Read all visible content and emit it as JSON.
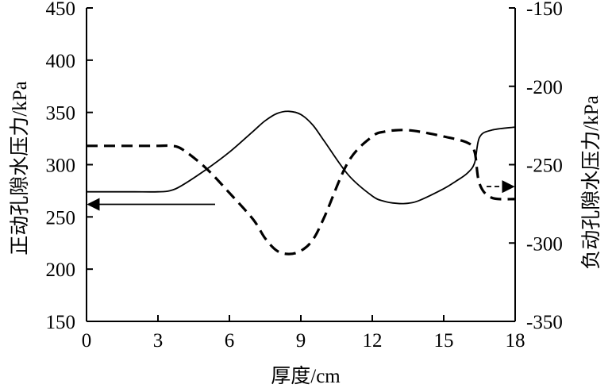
{
  "chart_data": {
    "type": "line",
    "xlabel": "厚度/cm",
    "ylabel_left": "正动孔隙水压力/kPa",
    "ylabel_right": "负动孔隙水压力/kPa",
    "xlim": [
      0,
      18
    ],
    "ylim_left": [
      150,
      450
    ],
    "ylim_right": [
      -350,
      -150
    ],
    "x_ticks": [
      "0",
      "3",
      "6",
      "9",
      "12",
      "15",
      "18"
    ],
    "y_left_ticks": [
      "450",
      "400",
      "350",
      "300",
      "250",
      "200",
      "150"
    ],
    "y_right_ticks": [
      "-150",
      "-200",
      "-250",
      "-300",
      "-350"
    ],
    "grid": false,
    "series": [
      {
        "axis": "left",
        "style": "solid",
        "x": [
          0,
          1,
          2,
          3,
          3.5,
          4,
          5,
          6,
          7,
          7.5,
          8,
          8.5,
          9,
          9.5,
          10,
          11,
          12,
          12.5,
          13,
          13.5,
          14,
          15,
          15.5,
          16,
          16.3,
          16.5,
          17,
          18
        ],
        "y": [
          274,
          274,
          274,
          274,
          275,
          280,
          295,
          312,
          332,
          342,
          349,
          351,
          348,
          338,
          322,
          290,
          270,
          265,
          263,
          263,
          266,
          277,
          284,
          292,
          302,
          326,
          333,
          336
        ]
      },
      {
        "axis": "right",
        "style": "dashed",
        "x": [
          0,
          1,
          2,
          3,
          3.5,
          4,
          5,
          6,
          7,
          7.5,
          8,
          8.5,
          9,
          9.5,
          10,
          11,
          12,
          12.5,
          13,
          13.5,
          14,
          15,
          16,
          16.3,
          16.5,
          17,
          18
        ],
        "y": [
          -238,
          -238,
          -238,
          -238,
          -238,
          -240,
          -252,
          -268,
          -285,
          -297,
          -305,
          -307,
          -305,
          -298,
          -283,
          -248,
          -232,
          -229,
          -228,
          -228,
          -229,
          -232,
          -236,
          -242,
          -262,
          -271,
          -272
        ]
      }
    ],
    "arrows": [
      {
        "axis": "left",
        "direction": "left",
        "from_x": 5.4,
        "to_x": 0,
        "y": 262
      },
      {
        "axis": "right",
        "direction": "right",
        "from_x": 16.8,
        "to_x": 18,
        "y": -264
      }
    ]
  }
}
